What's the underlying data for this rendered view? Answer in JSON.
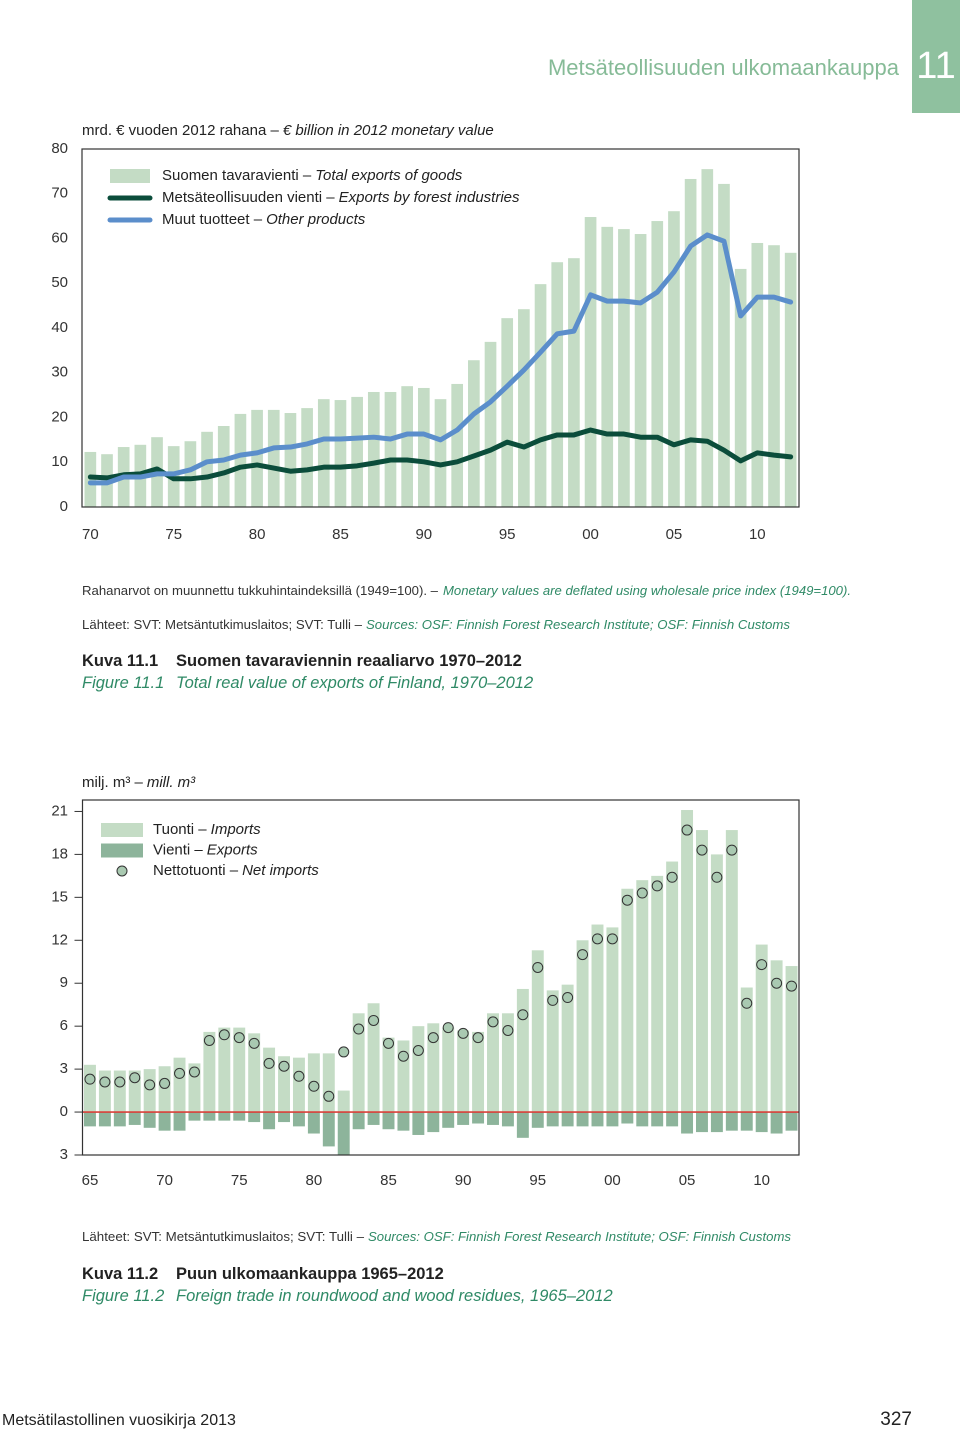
{
  "header": {
    "section_title": "Metsäteollisuuden ulkomaankauppa",
    "chapter_number": "11"
  },
  "chart_data": [
    {
      "type": "combo",
      "ylabel": "mrd. € vuoden 2012 rahana –",
      "ylabel_en": "€ billion in 2012 monetary value",
      "categories": [
        "70",
        null,
        null,
        null,
        null,
        "75",
        null,
        null,
        null,
        null,
        "80",
        null,
        null,
        null,
        null,
        "85",
        null,
        null,
        null,
        null,
        "90",
        null,
        null,
        null,
        null,
        "95",
        null,
        null,
        null,
        null,
        "00",
        null,
        null,
        null,
        null,
        "05",
        null,
        null,
        null,
        null,
        "10",
        null,
        null
      ],
      "series": [
        {
          "name": "Suomen tavaravienti –",
          "name_en": "Total exports of goods",
          "type": "bar",
          "color": "#c4dcc5",
          "values": [
            12.3,
            11.8,
            13.4,
            13.9,
            15.6,
            13.6,
            14.7,
            16.8,
            18.1,
            20.8,
            21.7,
            21.7,
            21.0,
            22.1,
            24.1,
            23.9,
            24.6,
            25.7,
            25.7,
            27.0,
            26.6,
            24.1,
            27.5,
            32.8,
            36.9,
            42.2,
            44.2,
            49.8,
            54.7,
            55.6,
            64.8,
            62.6,
            62.1,
            61.0,
            63.9,
            66.1,
            73.3,
            75.5,
            72.2,
            53.2,
            59.0,
            58.5,
            56.8
          ]
        },
        {
          "name": "Metsäteollisuuden vienti –",
          "name_en": "Exports by forest industries",
          "type": "line",
          "color": "#0b4d3b",
          "values": [
            6.7,
            6.5,
            7.2,
            7.4,
            8.5,
            6.3,
            6.3,
            6.7,
            7.6,
            8.9,
            9.4,
            8.7,
            8.0,
            8.3,
            8.9,
            8.9,
            9.2,
            9.8,
            10.5,
            10.5,
            10.1,
            9.4,
            10.1,
            11.4,
            12.7,
            14.5,
            13.4,
            15.0,
            16.1,
            16.1,
            17.2,
            16.3,
            16.3,
            15.6,
            15.6,
            13.9,
            15.0,
            14.7,
            12.7,
            10.3,
            12.1,
            11.6,
            11.2
          ]
        },
        {
          "name": "Muut tuotteet –",
          "name_en": "Other products",
          "type": "line",
          "color": "#5b8ecb",
          "values": [
            5.4,
            5.4,
            6.7,
            6.7,
            7.4,
            7.4,
            8.3,
            10.1,
            10.5,
            11.6,
            12.1,
            13.2,
            13.4,
            14.1,
            15.2,
            15.2,
            15.4,
            15.6,
            15.2,
            16.3,
            16.3,
            15.0,
            17.2,
            20.8,
            23.5,
            27.0,
            30.6,
            34.6,
            38.7,
            39.3,
            47.4,
            46.0,
            46.0,
            45.6,
            48.0,
            52.5,
            58.3,
            60.8,
            59.4,
            42.7,
            46.9,
            46.9,
            45.8
          ]
        }
      ],
      "ylim": [
        0,
        80
      ],
      "yticks": [
        0,
        10,
        20,
        30,
        40,
        50,
        60,
        70,
        80
      ],
      "grid": false,
      "note": "Rahanarvot on muunnettu tukkuhintaindeksillä (1949=100). –",
      "note_en": "Monetary values are deflated using wholesale price index (1949=100).",
      "source": "Lähteet: SVT: Metsäntutkimuslaitos; SVT: Tulli –",
      "source_en": "Sources: OSF: Finnish Forest Research Institute; OSF: Finnish Customs",
      "caption_label": "Kuva 11.1",
      "caption": "Suomen tavaraviennin reaaliarvo 1970–2012",
      "caption_label_en": "Figure 11.1",
      "caption_en": "Total real value of exports of Finland, 1970–2012"
    },
    {
      "type": "combo",
      "ylabel": "milj. m³ –",
      "ylabel_en": "mill. m³",
      "categories": [
        "65",
        null,
        null,
        null,
        null,
        "70",
        null,
        null,
        null,
        null,
        "75",
        null,
        null,
        null,
        null,
        "80",
        null,
        null,
        null,
        null,
        "85",
        null,
        null,
        null,
        null,
        "90",
        null,
        null,
        null,
        null,
        "95",
        null,
        null,
        null,
        null,
        "00",
        null,
        null,
        null,
        null,
        "05",
        null,
        null,
        null,
        null,
        "10",
        null,
        null
      ],
      "series": [
        {
          "name": "Tuonti –",
          "name_en": "Imports",
          "type": "bar",
          "color": "#c4dcc5",
          "values": [
            3.3,
            2.9,
            2.9,
            2.9,
            3.0,
            3.2,
            3.8,
            3.4,
            5.6,
            5.9,
            5.9,
            5.5,
            4.5,
            3.9,
            3.8,
            4.1,
            4.1,
            1.5,
            6.9,
            7.6,
            5.2,
            5.0,
            6.0,
            6.2,
            5.9,
            5.7,
            5.6,
            6.9,
            6.9,
            8.6,
            11.3,
            8.5,
            8.9,
            12.0,
            13.1,
            12.9,
            15.6,
            16.2,
            16.5,
            17.5,
            21.1,
            19.7,
            18.0,
            19.7,
            8.7,
            11.7,
            10.6,
            10.2
          ]
        },
        {
          "name": "Vienti –",
          "name_en": "Exports",
          "type": "bar",
          "color": "#8db49b",
          "values": [
            -1.0,
            -1.0,
            -1.0,
            -0.9,
            -1.1,
            -1.3,
            -1.3,
            -0.6,
            -0.6,
            -0.6,
            -0.6,
            -0.7,
            -1.2,
            -0.7,
            -1.0,
            -1.5,
            -2.4,
            -3.0,
            -1.2,
            -0.9,
            -1.2,
            -1.3,
            -1.6,
            -1.4,
            -1.1,
            -0.9,
            -0.8,
            -0.9,
            -1.0,
            -1.8,
            -1.1,
            -1.0,
            -1.0,
            -1.0,
            -1.0,
            -1.0,
            -0.8,
            -1.0,
            -1.0,
            -1.0,
            -1.5,
            -1.4,
            -1.4,
            -1.3,
            -1.3,
            -1.4,
            -1.5,
            -1.3
          ]
        },
        {
          "name": "Nettotuonti –",
          "name_en": "Net imports",
          "type": "scatter",
          "color": "#a9c9b1",
          "values": [
            2.3,
            2.1,
            2.1,
            2.4,
            1.9,
            2.0,
            2.7,
            2.8,
            5.0,
            5.4,
            5.2,
            4.8,
            3.4,
            3.2,
            2.5,
            1.8,
            1.1,
            4.2,
            5.8,
            6.4,
            4.8,
            3.9,
            4.3,
            5.2,
            5.9,
            5.5,
            5.2,
            6.3,
            5.7,
            6.8,
            10.1,
            7.8,
            8.0,
            11.0,
            12.1,
            12.1,
            14.8,
            15.3,
            15.8,
            16.4,
            19.7,
            18.3,
            16.4,
            18.3,
            7.6,
            10.3,
            9.0,
            8.8
          ]
        }
      ],
      "ylim": [
        -3,
        21.8
      ],
      "yticks": [
        {
          "value": -3,
          "label": "3"
        },
        0,
        3,
        6,
        9,
        12,
        15,
        18,
        21
      ],
      "grid": false,
      "source": "Lähteet: SVT: Metsäntutkimuslaitos; SVT: Tulli –",
      "source_en": "Sources: OSF: Finnish Forest Research Institute; OSF: Finnish Customs",
      "caption_label": "Kuva 11.2",
      "caption": "Puun ulkomaankauppa 1965–2012",
      "caption_label_en": "Figure 11.2",
      "caption_en": "Foreign trade in roundwood and wood residues, 1965–2012"
    }
  ],
  "footer": {
    "publication": "Metsätilastollinen vuosikirja 2013",
    "page_number": "327"
  }
}
